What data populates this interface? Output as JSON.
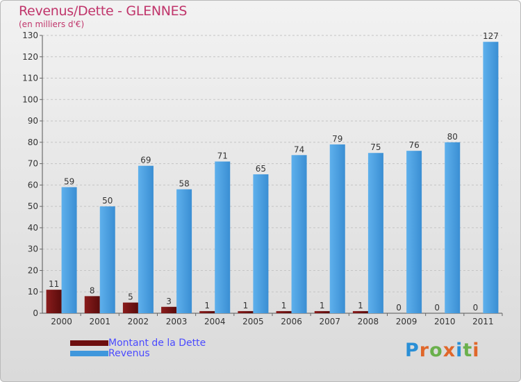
{
  "header": {
    "title": "Revenus/Dette - GLENNES",
    "subtitle": "(en milliers d'€)"
  },
  "chart_data": {
    "type": "bar",
    "title": "Revenus/Dette - GLENNES",
    "subtitle": "(en milliers d'€)",
    "xlabel": "",
    "ylabel": "",
    "ylim": [
      0,
      130
    ],
    "yticks": [
      0,
      10,
      20,
      30,
      40,
      50,
      60,
      70,
      80,
      90,
      100,
      110,
      120,
      130
    ],
    "grid": true,
    "categories": [
      "2000",
      "2001",
      "2002",
      "2003",
      "2004",
      "2005",
      "2006",
      "2007",
      "2008",
      "2009",
      "2010",
      "2011"
    ],
    "series": [
      {
        "name": "Montant de la Dette",
        "color": "#7a1515",
        "values": [
          11,
          8,
          5,
          3,
          1,
          1,
          1,
          1,
          1,
          0,
          0,
          0
        ]
      },
      {
        "name": "Revenus",
        "color": "#4a9fe0",
        "values": [
          59,
          50,
          69,
          58,
          71,
          65,
          74,
          79,
          75,
          76,
          80,
          127
        ]
      }
    ]
  },
  "legend": {
    "items": [
      {
        "label": "Montant de la Dette",
        "color": "#6e0f0f"
      },
      {
        "label": "Revenus",
        "color": "#3f97dc"
      }
    ]
  },
  "brand": {
    "letters": [
      "P",
      "r",
      "o",
      "x",
      "i",
      "t",
      "i"
    ],
    "colors": [
      "#2a8fd6",
      "#e0672a",
      "#6ab04c",
      "#e0672a",
      "#2a8fd6",
      "#6ab04c",
      "#e0672a"
    ]
  }
}
